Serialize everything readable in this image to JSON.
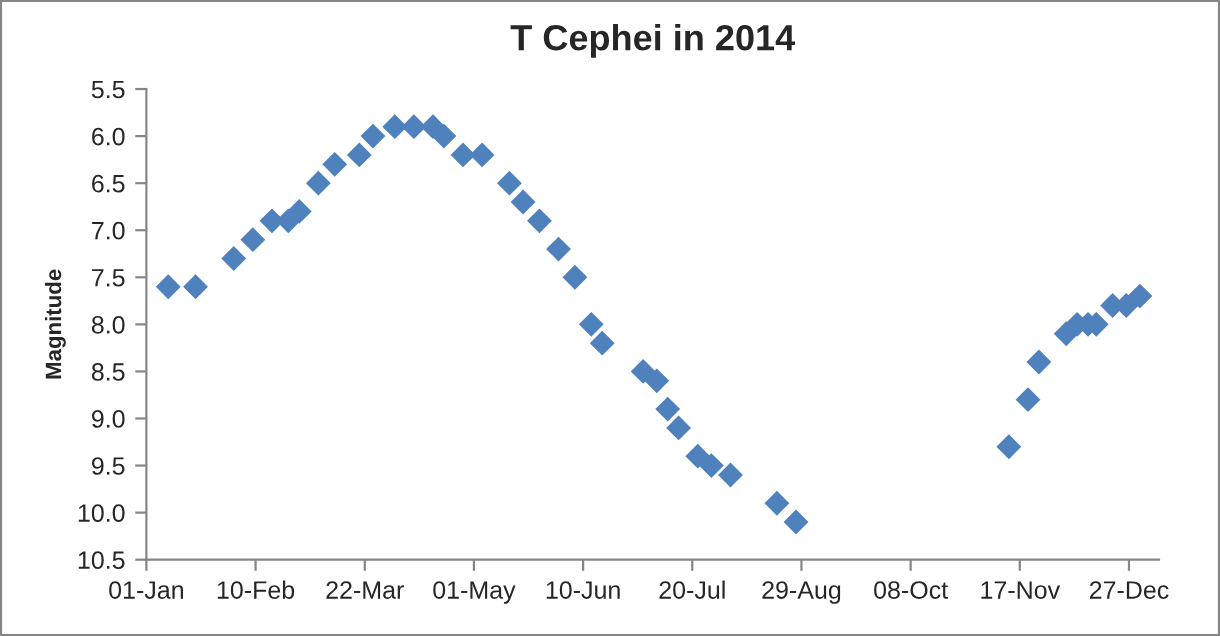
{
  "chart_data": {
    "type": "scatter",
    "title": "T Cephei in 2014",
    "ylabel": "Magnitude",
    "x": [
      "2014-01-09",
      "2014-01-19",
      "2014-02-02",
      "2014-02-09",
      "2014-02-16",
      "2014-02-22",
      "2014-02-26",
      "2014-03-05",
      "2014-03-11",
      "2014-03-20",
      "2014-03-25",
      "2014-04-02",
      "2014-04-09",
      "2014-04-16",
      "2014-04-20",
      "2014-04-27",
      "2014-05-04",
      "2014-05-14",
      "2014-05-19",
      "2014-05-25",
      "2014-06-01",
      "2014-06-07",
      "2014-06-13",
      "2014-06-17",
      "2014-07-02",
      "2014-07-07",
      "2014-07-11",
      "2014-07-15",
      "2014-07-22",
      "2014-07-27",
      "2014-08-03",
      "2014-08-20",
      "2014-08-27",
      "2014-11-13",
      "2014-11-20",
      "2014-11-24",
      "2014-12-04",
      "2014-12-08",
      "2014-12-12",
      "2014-12-15",
      "2014-12-21",
      "2014-12-26",
      "2014-12-31"
    ],
    "series": [
      {
        "color": "#4f81bd",
        "values": [
          7.6,
          7.6,
          7.3,
          7.1,
          6.9,
          6.9,
          6.8,
          6.5,
          6.3,
          6.2,
          6.0,
          5.9,
          5.9,
          5.9,
          6.0,
          6.2,
          6.2,
          6.5,
          6.7,
          6.9,
          7.2,
          7.5,
          8.0,
          8.2,
          8.5,
          8.6,
          8.9,
          9.1,
          9.4,
          9.5,
          9.6,
          9.9,
          10.1,
          9.3,
          8.8,
          8.4,
          8.1,
          8.0,
          8.0,
          8.0,
          7.8,
          7.8,
          7.7
        ]
      }
    ],
    "marker": "diamond",
    "grid": false,
    "xlim": [
      "2014-01-01",
      "2015-01-07"
    ],
    "xticks": [
      {
        "value": "2014-01-01",
        "label": "01-Jan"
      },
      {
        "value": "2014-02-10",
        "label": "10-Feb"
      },
      {
        "value": "2014-03-22",
        "label": "22-Mar"
      },
      {
        "value": "2014-05-01",
        "label": "01-May"
      },
      {
        "value": "2014-06-10",
        "label": "10-Jun"
      },
      {
        "value": "2014-07-20",
        "label": "20-Jul"
      },
      {
        "value": "2014-08-29",
        "label": "29-Aug"
      },
      {
        "value": "2014-10-08",
        "label": "08-Oct"
      },
      {
        "value": "2014-11-17",
        "label": "17-Nov"
      },
      {
        "value": "2014-12-27",
        "label": "27-Dec"
      }
    ],
    "ylim": [
      10.5,
      5.5
    ],
    "yticks": [
      {
        "value": 5.5,
        "label": "5.5"
      },
      {
        "value": 6,
        "label": "6.0"
      },
      {
        "value": 6.5,
        "label": "6.5"
      },
      {
        "value": 7,
        "label": "7.0"
      },
      {
        "value": 7.5,
        "label": "7.5"
      },
      {
        "value": 8,
        "label": "8.0"
      },
      {
        "value": 8.5,
        "label": "8.5"
      },
      {
        "value": 9,
        "label": "9.0"
      },
      {
        "value": 9.5,
        "label": "9.5"
      },
      {
        "value": 10,
        "label": "10.0"
      },
      {
        "value": 10.5,
        "label": "10.5"
      }
    ]
  }
}
